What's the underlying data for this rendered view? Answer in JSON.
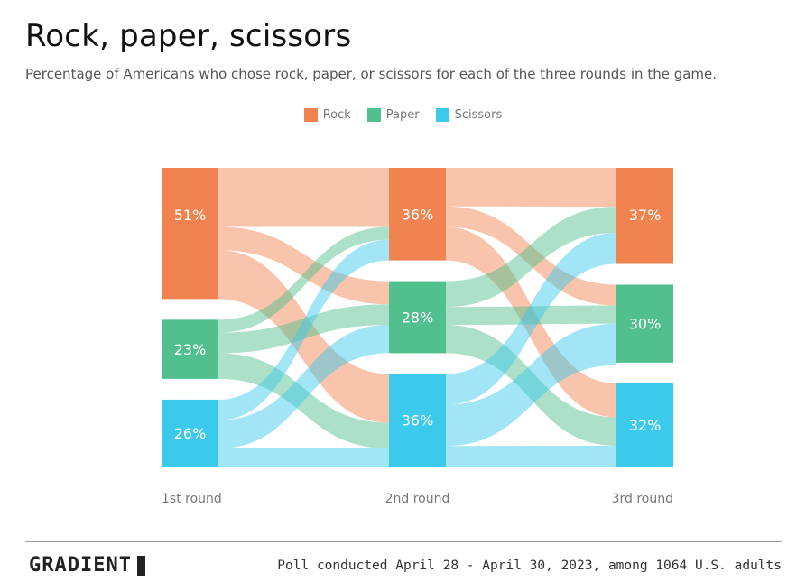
{
  "title": "Rock, paper, scissors",
  "subtitle": "Percentage of Americans who chose rock, paper, or scissors for each of the three rounds in the game.",
  "legend": [
    {
      "label": "Rock",
      "color": "#F0834F"
    },
    {
      "label": "Paper",
      "color": "#52BF8E"
    },
    {
      "label": "Scissors",
      "color": "#3BC9EC"
    }
  ],
  "logo": "GRADIENT",
  "source": "Poll conducted April 28 - April 30, 2023, among 1064 U.S. adults",
  "chart_data": {
    "type": "sankey",
    "stages": [
      "1st round",
      "2nd round",
      "3rd round"
    ],
    "categories": [
      "Rock",
      "Paper",
      "Scissors"
    ],
    "colors": {
      "Rock": "#F0834F",
      "Paper": "#52BF8E",
      "Scissors": "#3BC9EC"
    },
    "nodes": [
      {
        "stage": 0,
        "category": "Rock",
        "value": 51,
        "label": "51%"
      },
      {
        "stage": 0,
        "category": "Paper",
        "value": 23,
        "label": "23%"
      },
      {
        "stage": 0,
        "category": "Scissors",
        "value": 26,
        "label": "26%"
      },
      {
        "stage": 1,
        "category": "Rock",
        "value": 36,
        "label": "36%"
      },
      {
        "stage": 1,
        "category": "Paper",
        "value": 28,
        "label": "28%"
      },
      {
        "stage": 1,
        "category": "Scissors",
        "value": 36,
        "label": "36%"
      },
      {
        "stage": 2,
        "category": "Rock",
        "value": 37,
        "label": "37%"
      },
      {
        "stage": 2,
        "category": "Paper",
        "value": 30,
        "label": "30%"
      },
      {
        "stage": 2,
        "category": "Scissors",
        "value": 32,
        "label": "32%"
      }
    ],
    "links": [
      {
        "stage": 0,
        "from": "Rock",
        "to": "Rock",
        "value": 23
      },
      {
        "stage": 0,
        "from": "Rock",
        "to": "Paper",
        "value": 9
      },
      {
        "stage": 0,
        "from": "Rock",
        "to": "Scissors",
        "value": 19
      },
      {
        "stage": 0,
        "from": "Paper",
        "to": "Rock",
        "value": 5
      },
      {
        "stage": 0,
        "from": "Paper",
        "to": "Paper",
        "value": 8
      },
      {
        "stage": 0,
        "from": "Paper",
        "to": "Scissors",
        "value": 10
      },
      {
        "stage": 0,
        "from": "Scissors",
        "to": "Rock",
        "value": 8
      },
      {
        "stage": 0,
        "from": "Scissors",
        "to": "Paper",
        "value": 11
      },
      {
        "stage": 0,
        "from": "Scissors",
        "to": "Scissors",
        "value": 7
      },
      {
        "stage": 1,
        "from": "Rock",
        "to": "Rock",
        "value": 15
      },
      {
        "stage": 1,
        "from": "Rock",
        "to": "Paper",
        "value": 8
      },
      {
        "stage": 1,
        "from": "Rock",
        "to": "Scissors",
        "value": 13
      },
      {
        "stage": 1,
        "from": "Paper",
        "to": "Rock",
        "value": 10
      },
      {
        "stage": 1,
        "from": "Paper",
        "to": "Paper",
        "value": 7
      },
      {
        "stage": 1,
        "from": "Paper",
        "to": "Scissors",
        "value": 11
      },
      {
        "stage": 1,
        "from": "Scissors",
        "to": "Rock",
        "value": 12
      },
      {
        "stage": 1,
        "from": "Scissors",
        "to": "Paper",
        "value": 16
      },
      {
        "stage": 1,
        "from": "Scissors",
        "to": "Scissors",
        "value": 8
      }
    ]
  }
}
